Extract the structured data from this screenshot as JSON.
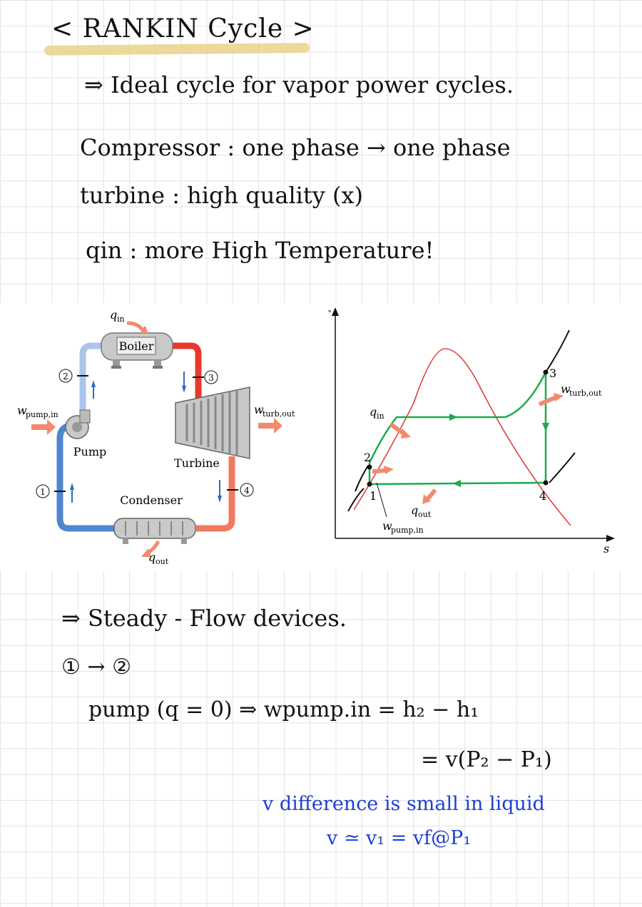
{
  "notes": {
    "title": "< RANKIN Cycle >",
    "line1": "⇒ Ideal cycle for vapor power cycles.",
    "line2": "Compressor : one phase → one phase",
    "line3": "turbine : high quality (x)",
    "line4": "qin : more High Temperature!",
    "line5": "⇒ Steady - Flow devices.",
    "line6": "① → ②",
    "line7": "pump (q = 0) ⇒ wpump.in = h₂ − h₁",
    "line8": "= v(P₂ − P₁)",
    "line9": "v difference is small in liquid",
    "line10": "v ≃ v₁ = vf@P₁"
  },
  "schematic": {
    "q_in": "q",
    "q_in_sub": "in",
    "boiler": "Boiler",
    "pump": "Pump",
    "turbine": "Turbine",
    "condenser": "Condenser",
    "w_pump_in": "w",
    "w_pump_in_sub": "pump,in",
    "w_turb_out": "w",
    "w_turb_out_sub": "turb,out",
    "q_out": "q",
    "q_out_sub": "out",
    "state1": "1",
    "state2": "2",
    "state3": "3",
    "state4": "4"
  },
  "ts_diagram": {
    "y_axis": "T",
    "x_axis": "s",
    "q_in": "q",
    "q_in_sub": "in",
    "w_turb_out": "w",
    "w_turb_out_sub": "turb,out",
    "q_out": "q",
    "q_out_sub": "out",
    "w_pump_in": "w",
    "w_pump_in_sub": "pump,in",
    "p1": "1",
    "p2": "2",
    "p3": "3",
    "p4": "4"
  },
  "colors": {
    "ink": "#111111",
    "note_blue": "#1f3fd1",
    "highlight": "#e8d48a",
    "hot_pipe": "#e8392e",
    "cold_pipe": "#4f86cf",
    "cycle_line": "#1faa4a",
    "dome_line": "#e04040",
    "arrow": "#f28b6e"
  }
}
